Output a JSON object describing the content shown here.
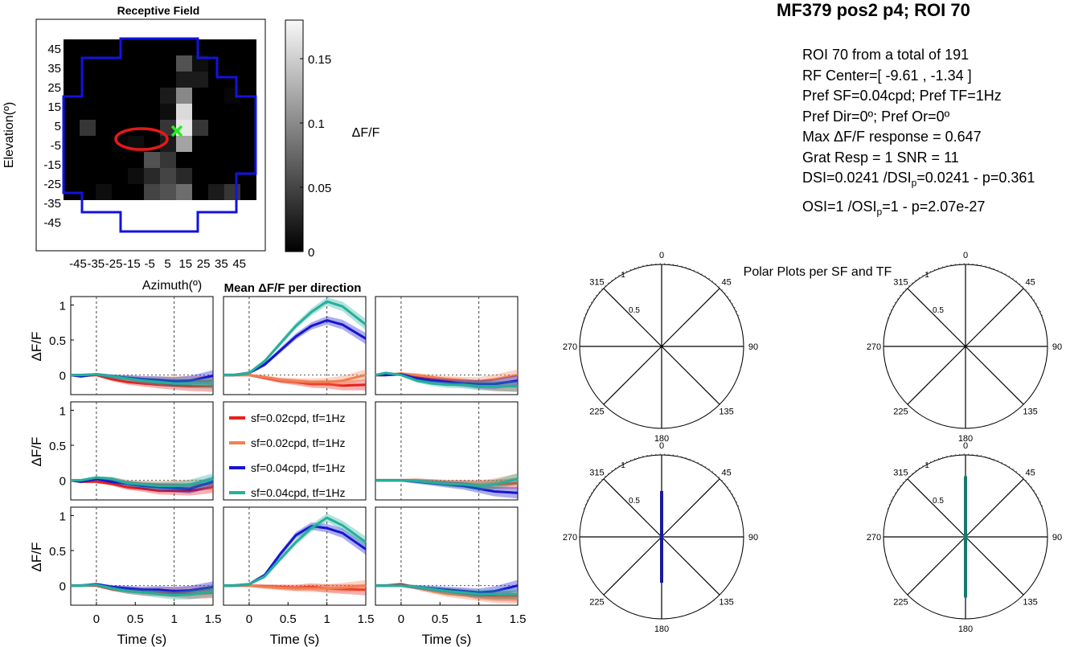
{
  "page_title": "MF379 pos2 p4; ROI 70",
  "info": {
    "line1": "ROI 70 from a total of 191",
    "line2": "RF Center=[ -9.61 , -1.34 ]",
    "line3": "Pref SF=0.04cpd; Pref TF=1Hz",
    "line4": "Pref Dir=0º; Pref Or=0º",
    "line5": "Max ΔF/F response = 0.647",
    "line6": "Grat Resp = 1 SNR = 11",
    "line7a": "DSI=0.0241 /DSI",
    "line7sub": "p",
    "line7b": "=0.0241 - p=0.361",
    "line8a": "OSI=1 /OSI",
    "line8sub": "p",
    "line8b": "=1 - p=2.07e-27"
  },
  "colors": {
    "red": "#e8201c",
    "orange": "#f08050",
    "blue": "#1515d0",
    "teal": "#25b09a",
    "rf_outline": "#1212e0",
    "rf_center_ellipse": "#e81818",
    "rf_center_marker": "#22ee22",
    "polar_blue": "#1a1a9a",
    "polar_teal": "#157a6e"
  },
  "chart_data": [
    {
      "type": "heatmap",
      "title": "Receptive Field",
      "xlabel": "Azimuth(º)",
      "ylabel": "Elevation(º)",
      "x_ticks": [
        "-45",
        "-35",
        "-25",
        "-15",
        "-5",
        "5",
        "15",
        "25",
        "35",
        "45"
      ],
      "y_ticks": [
        "45",
        "35",
        "25",
        "15",
        "5",
        "-5",
        "-15",
        "-25",
        "-35",
        "-45"
      ],
      "colorbar": {
        "label": "ΔF/F",
        "ticks": [
          "0",
          "0.05",
          "0.1",
          "0.15"
        ],
        "range": [
          0,
          0.18
        ]
      },
      "grid_size": [
        12,
        10
      ],
      "values": [
        [
          0,
          0,
          0,
          0,
          0,
          0,
          0,
          0,
          0,
          0,
          0,
          0
        ],
        [
          0,
          0,
          0,
          0,
          0,
          0.04,
          0,
          0,
          0,
          0,
          0,
          0
        ],
        [
          0,
          0,
          0,
          0,
          0,
          0,
          0,
          0,
          0,
          0.01,
          0,
          0
        ],
        [
          0,
          0,
          0,
          0,
          0,
          0,
          0.005,
          0,
          0,
          0,
          0,
          0
        ],
        [
          0,
          0,
          0,
          0,
          0,
          0,
          0.01,
          0,
          0.01,
          0,
          0.01,
          0
        ],
        [
          0,
          0,
          0,
          0,
          0,
          0,
          0,
          0.06,
          0.03,
          0.05,
          0,
          0
        ],
        [
          0,
          0,
          0,
          0.02,
          0.01,
          0.04,
          0.02,
          0.04,
          0.05,
          0.06,
          0,
          0
        ],
        [
          0,
          0.06,
          0.02,
          0.1,
          0.16,
          0.17,
          0.12,
          0,
          0.03,
          0.08,
          0,
          0
        ],
        [
          0,
          0.01,
          0.02,
          0,
          0,
          0.04,
          0,
          0,
          0,
          0,
          0,
          0
        ],
        [
          0,
          0,
          0,
          0,
          0,
          0,
          0,
          0,
          0,
          0.02,
          0,
          0
        ],
        [
          0,
          0,
          0,
          0.005,
          0,
          0,
          0,
          0,
          0,
          0.04,
          0,
          0
        ],
        [
          0,
          0,
          0,
          0,
          0,
          0,
          0,
          0,
          0,
          0,
          0,
          0
        ]
      ],
      "rf_center": [
        -9.61,
        -1.34
      ]
    },
    {
      "type": "line",
      "title": "Mean ΔF/F per direction",
      "xlabel": "Time (s)",
      "ylabel": "ΔF/F",
      "xlim": [
        -0.33,
        1.5
      ],
      "ylim": [
        -0.28,
        1.12
      ],
      "x_ticks": [
        "0",
        "0.5",
        "1",
        "1.5"
      ],
      "y_ticks": [
        "0",
        "0.5",
        "1"
      ],
      "x": [
        -0.33,
        -0.2,
        0,
        0.2,
        0.4,
        0.6,
        0.8,
        1.0,
        1.2,
        1.5
      ],
      "legend": [
        "sf=0.02cpd, tf=1Hz",
        "sf=0.02cpd, tf=1Hz",
        "sf=0.04cpd, tf=1Hz",
        "sf=0.04cpd, tf=1Hz"
      ],
      "panels": [
        {
          "pos": "r0c0",
          "series": [
            [
              0,
              -0.01,
              0,
              -0.06,
              -0.1,
              -0.12,
              -0.14,
              -0.15,
              -0.16,
              -0.16
            ],
            [
              0,
              0,
              0.01,
              -0.02,
              -0.04,
              -0.06,
              -0.07,
              -0.08,
              -0.08,
              -0.09
            ],
            [
              0,
              -0.02,
              0.01,
              -0.02,
              -0.04,
              -0.06,
              -0.07,
              -0.09,
              -0.08,
              -0.01
            ],
            [
              0,
              0,
              0.01,
              -0.02,
              -0.05,
              -0.08,
              -0.1,
              -0.12,
              -0.12,
              -0.12
            ]
          ]
        },
        {
          "pos": "r0c1",
          "series": [
            [
              0,
              0,
              0,
              -0.04,
              -0.08,
              -0.1,
              -0.13,
              -0.13,
              -0.15,
              -0.14
            ],
            [
              0,
              0,
              0,
              -0.03,
              -0.07,
              -0.09,
              -0.1,
              -0.1,
              -0.08,
              0
            ],
            [
              0,
              0,
              0.03,
              0.15,
              0.35,
              0.55,
              0.7,
              0.78,
              0.72,
              0.52
            ],
            [
              0,
              0,
              0.03,
              0.2,
              0.45,
              0.7,
              0.9,
              1.05,
              0.98,
              0.72
            ]
          ]
        },
        {
          "pos": "r0c2",
          "series": [
            [
              0,
              0,
              0.02,
              -0.03,
              -0.06,
              -0.08,
              -0.1,
              -0.14,
              -0.16,
              -0.16
            ],
            [
              0,
              0,
              0.02,
              0,
              -0.03,
              -0.06,
              -0.08,
              -0.09,
              -0.06,
              0
            ],
            [
              0,
              0,
              0.01,
              -0.05,
              -0.08,
              -0.1,
              -0.12,
              -0.13,
              -0.13,
              -0.08
            ],
            [
              0,
              0.03,
              0,
              -0.08,
              -0.12,
              -0.14,
              -0.14,
              -0.16,
              -0.16,
              -0.16
            ]
          ]
        },
        {
          "pos": "r1c0",
          "series": [
            [
              0,
              -0.02,
              -0.02,
              -0.05,
              -0.1,
              -0.12,
              -0.15,
              -0.15,
              -0.15,
              -0.1
            ],
            [
              0,
              0,
              0.03,
              0.02,
              -0.03,
              -0.05,
              -0.06,
              -0.06,
              -0.06,
              -0.06
            ],
            [
              0,
              -0.02,
              0.02,
              -0.02,
              -0.05,
              -0.08,
              -0.1,
              -0.11,
              -0.12,
              -0.02
            ],
            [
              0,
              0,
              0.04,
              0.02,
              -0.04,
              -0.06,
              -0.08,
              -0.08,
              -0.06,
              0.02
            ]
          ]
        },
        {
          "pos": "r1c2",
          "series": [
            [
              0,
              0,
              0,
              0,
              -0.02,
              -0.04,
              -0.05,
              -0.06,
              -0.06,
              -0.04
            ],
            [
              0,
              0,
              0,
              0,
              -0.02,
              -0.04,
              -0.05,
              -0.06,
              -0.04,
              0.02
            ],
            [
              0,
              0,
              0,
              -0.02,
              -0.04,
              -0.06,
              -0.08,
              -0.12,
              -0.16,
              -0.18
            ],
            [
              0,
              0,
              0,
              -0.01,
              -0.03,
              -0.05,
              -0.06,
              -0.08,
              -0.06,
              0.02
            ]
          ]
        },
        {
          "pos": "r2c0",
          "series": [
            [
              0,
              0,
              0,
              -0.05,
              -0.08,
              -0.1,
              -0.1,
              -0.11,
              -0.12,
              -0.1
            ],
            [
              0,
              0,
              0.01,
              -0.03,
              -0.05,
              -0.07,
              -0.07,
              -0.08,
              -0.08,
              -0.06
            ],
            [
              0,
              0,
              0.02,
              -0.02,
              -0.04,
              -0.06,
              -0.06,
              -0.08,
              -0.07,
              -0.02
            ],
            [
              0,
              0,
              0.01,
              -0.04,
              -0.08,
              -0.1,
              -0.12,
              -0.14,
              -0.13,
              -0.08
            ]
          ]
        },
        {
          "pos": "r2c1",
          "series": [
            [
              0,
              0,
              0,
              -0.01,
              -0.02,
              -0.03,
              -0.02,
              -0.04,
              -0.05,
              -0.06
            ],
            [
              0,
              0,
              0,
              -0.02,
              -0.03,
              -0.04,
              -0.04,
              -0.04,
              -0.03,
              0
            ],
            [
              0,
              0,
              0.02,
              0.15,
              0.45,
              0.72,
              0.85,
              0.82,
              0.75,
              0.52
            ],
            [
              0,
              0,
              0.02,
              0.13,
              0.38,
              0.62,
              0.82,
              0.97,
              0.86,
              0.62
            ]
          ]
        },
        {
          "pos": "r2c2",
          "series": [
            [
              0,
              0,
              0.02,
              -0.03,
              -0.06,
              -0.08,
              -0.1,
              -0.14,
              -0.15,
              -0.15
            ],
            [
              0,
              0,
              0,
              -0.03,
              -0.08,
              -0.12,
              -0.14,
              -0.16,
              -0.18,
              -0.18
            ],
            [
              0,
              0,
              0,
              -0.02,
              -0.04,
              -0.06,
              -0.08,
              -0.1,
              -0.08,
              0
            ],
            [
              0,
              0,
              0,
              -0.02,
              -0.05,
              -0.08,
              -0.1,
              -0.12,
              -0.12,
              -0.12
            ]
          ]
        }
      ]
    },
    {
      "type": "polar",
      "title": "Polar Plots per SF and TF",
      "angles": [
        "0",
        "45",
        "90",
        "135",
        "180",
        "225",
        "270",
        "315"
      ],
      "radial_ticks": [
        "0.5",
        "1"
      ],
      "plots": [
        {
          "pos": "top-left",
          "value": null
        },
        {
          "pos": "top-right",
          "value": null
        },
        {
          "pos": "bottom-left",
          "value": 0.56,
          "color": "polar_blue"
        },
        {
          "pos": "bottom-right",
          "value": 0.74,
          "color": "polar_teal"
        }
      ]
    }
  ]
}
